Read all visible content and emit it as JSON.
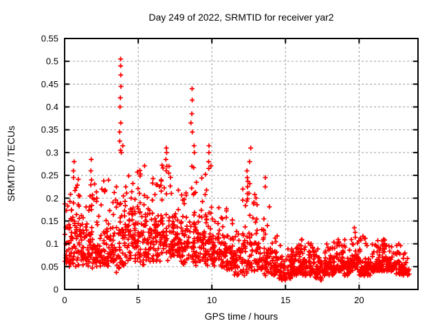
{
  "colors": {
    "marker": "#ff0000",
    "grid": "#9a9a9a",
    "frame": "#000000",
    "text": "#000000",
    "background": "#ffffff"
  },
  "chart_data": {
    "type": "scatter",
    "title": "Day 249 of 2022, SRMTID for receiver yar2",
    "xlabel": "GPS time / hours",
    "ylabel": "SRMTID / TECUs",
    "xlim": [
      0,
      24
    ],
    "ylim": [
      0,
      0.55
    ],
    "xticks": {
      "values": [
        0,
        5,
        10,
        15,
        20
      ],
      "labels": [
        "0",
        "5",
        "10",
        "15",
        "20"
      ]
    },
    "yticks": {
      "values": [
        0,
        0.05,
        0.1,
        0.15,
        0.2,
        0.25,
        0.3,
        0.35,
        0.4,
        0.45,
        0.5,
        0.55
      ],
      "labels": [
        "0",
        "0.05",
        "0.1",
        "0.15",
        "0.2",
        "0.25",
        "0.3",
        "0.35",
        "0.4",
        "0.45",
        "0.5",
        "0.55"
      ]
    },
    "grid": true,
    "legend": "none",
    "marker": {
      "shape": "plus",
      "color": "#ff0000",
      "size": 7
    },
    "seed": 20220249,
    "bins_format": "[hour_start, hour_end, n_points, y_min, y_max, y_typical] — noisy scatter envelope read from the plot",
    "distribution_bins": [
      [
        0.0,
        0.5,
        40,
        0.05,
        0.22,
        0.11
      ],
      [
        0.5,
        1.0,
        42,
        0.05,
        0.25,
        0.12
      ],
      [
        1.0,
        1.5,
        40,
        0.05,
        0.23,
        0.13
      ],
      [
        1.5,
        2.0,
        40,
        0.04,
        0.24,
        0.12
      ],
      [
        2.0,
        2.5,
        38,
        0.05,
        0.24,
        0.11
      ],
      [
        2.5,
        3.0,
        38,
        0.05,
        0.25,
        0.12
      ],
      [
        3.0,
        3.5,
        36,
        0.06,
        0.22,
        0.11
      ],
      [
        3.5,
        4.0,
        40,
        0.035,
        0.26,
        0.12
      ],
      [
        4.0,
        4.5,
        40,
        0.05,
        0.26,
        0.13
      ],
      [
        4.5,
        5.0,
        42,
        0.06,
        0.27,
        0.14
      ],
      [
        5.0,
        5.5,
        40,
        0.05,
        0.28,
        0.14
      ],
      [
        5.5,
        6.0,
        40,
        0.06,
        0.24,
        0.13
      ],
      [
        6.0,
        6.5,
        40,
        0.06,
        0.25,
        0.14
      ],
      [
        6.5,
        7.0,
        42,
        0.07,
        0.29,
        0.15
      ],
      [
        7.0,
        7.5,
        40,
        0.06,
        0.27,
        0.14
      ],
      [
        7.5,
        8.0,
        38,
        0.06,
        0.22,
        0.12
      ],
      [
        8.0,
        8.5,
        38,
        0.05,
        0.24,
        0.12
      ],
      [
        8.5,
        9.0,
        40,
        0.05,
        0.27,
        0.13
      ],
      [
        9.0,
        9.5,
        38,
        0.06,
        0.25,
        0.13
      ],
      [
        9.5,
        10.0,
        42,
        0.05,
        0.3,
        0.13
      ],
      [
        10.0,
        10.5,
        40,
        0.05,
        0.26,
        0.11
      ],
      [
        10.5,
        11.0,
        38,
        0.04,
        0.18,
        0.1
      ],
      [
        11.0,
        11.5,
        36,
        0.04,
        0.16,
        0.09
      ],
      [
        11.5,
        12.0,
        34,
        0.03,
        0.14,
        0.08
      ],
      [
        12.0,
        12.5,
        38,
        0.03,
        0.24,
        0.1
      ],
      [
        12.5,
        13.0,
        38,
        0.04,
        0.25,
        0.1
      ],
      [
        13.0,
        13.5,
        34,
        0.04,
        0.2,
        0.09
      ],
      [
        13.5,
        14.0,
        36,
        0.03,
        0.22,
        0.08
      ],
      [
        14.0,
        14.5,
        40,
        0.03,
        0.12,
        0.06
      ],
      [
        14.5,
        15.0,
        40,
        0.02,
        0.1,
        0.05
      ],
      [
        15.0,
        15.5,
        40,
        0.02,
        0.09,
        0.05
      ],
      [
        15.5,
        16.0,
        40,
        0.03,
        0.1,
        0.05
      ],
      [
        16.0,
        16.5,
        40,
        0.03,
        0.11,
        0.06
      ],
      [
        16.5,
        17.0,
        40,
        0.03,
        0.11,
        0.06
      ],
      [
        17.0,
        17.5,
        40,
        0.02,
        0.09,
        0.05
      ],
      [
        17.5,
        18.0,
        40,
        0.03,
        0.1,
        0.055
      ],
      [
        18.0,
        18.5,
        40,
        0.03,
        0.11,
        0.06
      ],
      [
        18.5,
        19.0,
        40,
        0.04,
        0.11,
        0.065
      ],
      [
        19.0,
        19.5,
        40,
        0.03,
        0.13,
        0.06
      ],
      [
        19.5,
        20.0,
        42,
        0.04,
        0.14,
        0.07
      ],
      [
        20.0,
        20.5,
        40,
        0.03,
        0.12,
        0.06
      ],
      [
        20.5,
        21.0,
        38,
        0.03,
        0.1,
        0.055
      ],
      [
        21.0,
        21.5,
        40,
        0.04,
        0.11,
        0.06
      ],
      [
        21.5,
        22.0,
        40,
        0.04,
        0.12,
        0.065
      ],
      [
        22.0,
        22.5,
        40,
        0.04,
        0.11,
        0.06
      ],
      [
        22.5,
        23.0,
        38,
        0.03,
        0.1,
        0.06
      ],
      [
        23.0,
        23.4,
        24,
        0.03,
        0.09,
        0.05
      ]
    ],
    "spike_columns": [
      {
        "x": 0.62,
        "ys": [
          0.245,
          0.26,
          0.28
        ]
      },
      {
        "x": 1.78,
        "ys": [
          0.24,
          0.26,
          0.285
        ]
      },
      {
        "x": 3.78,
        "ys": [
          0.305,
          0.325,
          0.345,
          0.365,
          0.4,
          0.42,
          0.445,
          0.47,
          0.49,
          0.505
        ]
      },
      {
        "x": 3.9,
        "ys": [
          0.3,
          0.315
        ]
      },
      {
        "x": 6.9,
        "ys": [
          0.26,
          0.27,
          0.285,
          0.3,
          0.31
        ]
      },
      {
        "x": 7.05,
        "ys": [
          0.255,
          0.27
        ]
      },
      {
        "x": 8.62,
        "ys": [
          0.345,
          0.365,
          0.385,
          0.415,
          0.44
        ]
      },
      {
        "x": 8.8,
        "ys": [
          0.3,
          0.315
        ]
      },
      {
        "x": 9.8,
        "ys": [
          0.265,
          0.28,
          0.3,
          0.315
        ]
      },
      {
        "x": 12.42,
        "ys": [
          0.21,
          0.225,
          0.245,
          0.26
        ]
      },
      {
        "x": 12.6,
        "ys": [
          0.28,
          0.31
        ]
      },
      {
        "x": 13.6,
        "ys": [
          0.225,
          0.245
        ]
      },
      {
        "x": 19.7,
        "ys": [
          0.125,
          0.135
        ]
      }
    ]
  }
}
